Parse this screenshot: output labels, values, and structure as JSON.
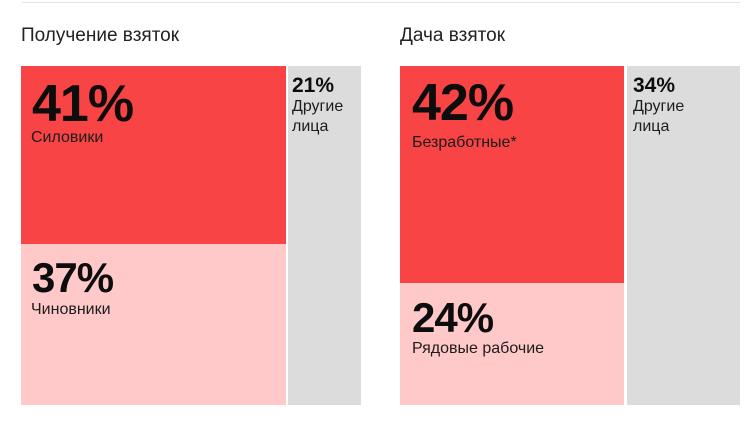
{
  "colors": {
    "primary": "#f84444",
    "secondary": "#ffc9c9",
    "other": "#dcdcdc"
  },
  "chart_data": [
    {
      "type": "treemap",
      "title": "Получение взяток",
      "series": [
        {
          "name": "Силовики",
          "value": 41,
          "label": "41%"
        },
        {
          "name": "Чиновники",
          "value": 37,
          "label": "37%"
        },
        {
          "name": "Другие лица",
          "value": 21,
          "label": "21%"
        }
      ]
    },
    {
      "type": "treemap",
      "title": "Дача взяток",
      "series": [
        {
          "name": "Безработные*",
          "value": 42,
          "label": "42%"
        },
        {
          "name": "Рядовые рабочие",
          "value": 24,
          "label": "24%"
        },
        {
          "name": "Другие лица",
          "value": 34,
          "label": "34%"
        }
      ]
    }
  ]
}
